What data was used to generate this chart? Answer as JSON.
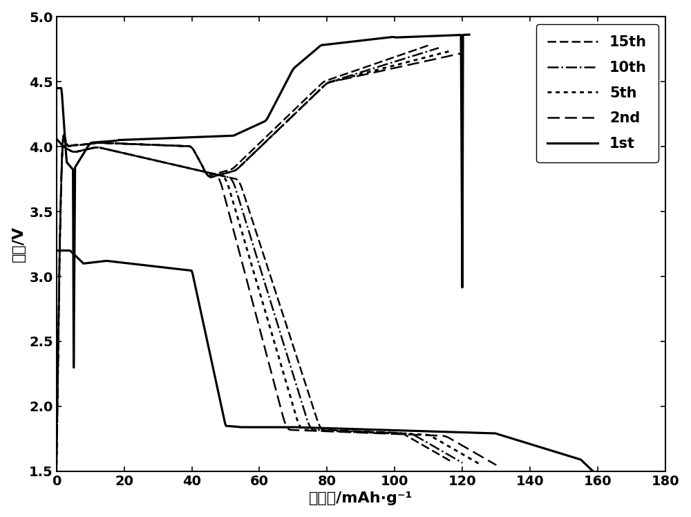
{
  "title": "",
  "xlabel": "比容量/mAh·g⁻¹",
  "ylabel": "电压/V",
  "xlim": [
    0,
    180
  ],
  "ylim": [
    1.5,
    5.0
  ],
  "xticks": [
    0,
    20,
    40,
    60,
    80,
    100,
    120,
    140,
    160,
    180
  ],
  "yticks": [
    1.5,
    2.0,
    2.5,
    3.0,
    3.5,
    4.0,
    4.5,
    5.0
  ],
  "background_color": "#ffffff",
  "line_color": "#000000",
  "legend_entries": [
    "15th",
    "10th",
    "5th",
    "2nd",
    "1st"
  ],
  "legend_loc": "upper right",
  "linewidth": 1.8
}
